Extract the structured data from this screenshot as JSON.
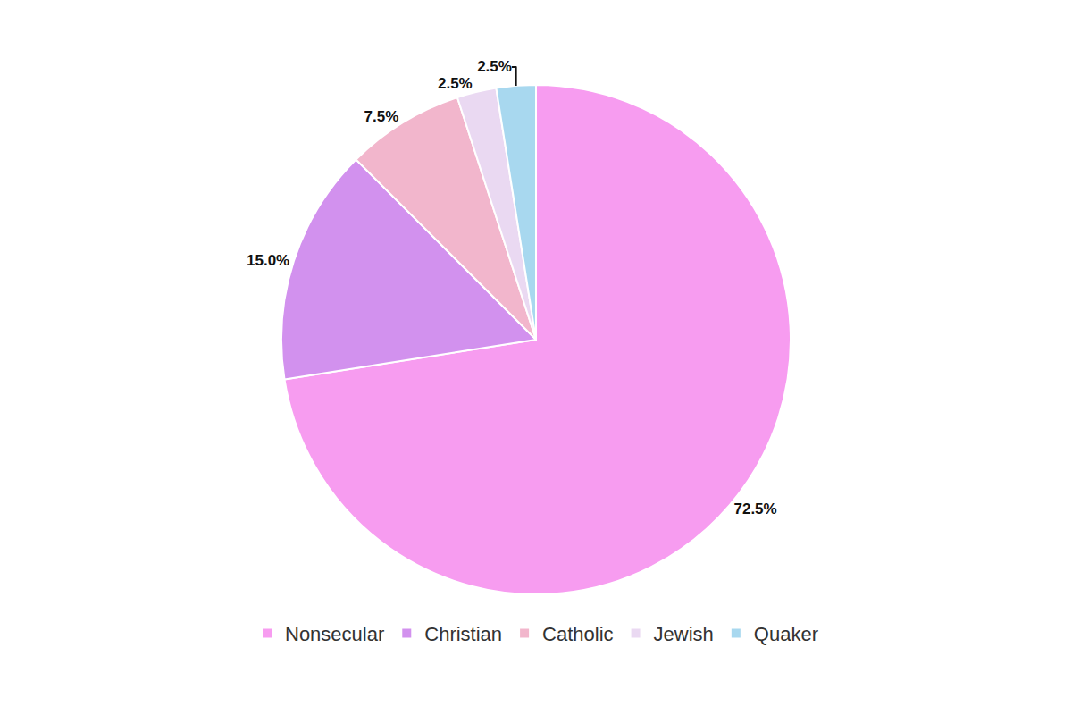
{
  "chart_data": {
    "type": "pie",
    "categories": [
      "Nonsecular",
      "Christian",
      "Catholic",
      "Jewish",
      "Quaker"
    ],
    "values": [
      72.5,
      15.0,
      7.5,
      2.5,
      2.5
    ],
    "value_labels": [
      "72.5%",
      "15.0%",
      "7.5%",
      "2.5%",
      "2.5%"
    ],
    "colors": [
      "#f79cf0",
      "#d291ee",
      "#f2b6cc",
      "#ead9f2",
      "#a8d8ef"
    ],
    "data_labels": true,
    "legend": "bottom"
  }
}
